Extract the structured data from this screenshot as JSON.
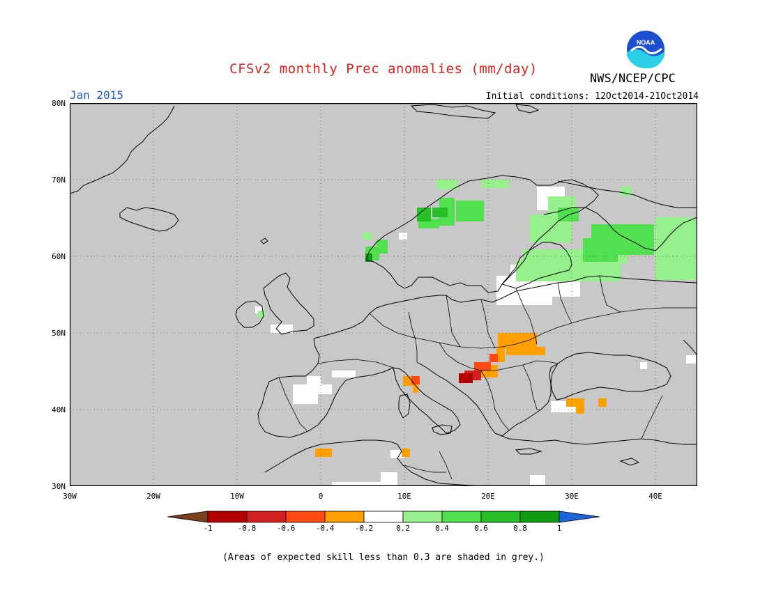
{
  "title": "CFSv2 monthly Prec anomalies (mm/day)",
  "agency": "NWS/NCEP/CPC",
  "logo_text": "NOAA",
  "month": "Jan 2015",
  "initial_conditions": "Initial conditions: 12Oct2014-21Oct2014",
  "footnote": "(Areas of expected skill less than 0.3 are shaded in grey.)",
  "map": {
    "lat_labels": [
      "80N",
      "70N",
      "60N",
      "50N",
      "40N",
      "30N"
    ],
    "lon_labels": [
      "30W",
      "20W",
      "10W",
      "0",
      "10E",
      "20E",
      "30E",
      "40E"
    ],
    "background_color": "#c8c8c8"
  },
  "legend": {
    "labels": [
      "-1",
      "-0.8",
      "-0.6",
      "-0.4",
      "-0.2",
      "0.2",
      "0.4",
      "0.6",
      "0.8",
      "1"
    ],
    "colors": {
      "below_min": "#7a3f1d",
      "bins": [
        "#b40000",
        "#d22020",
        "#ff4a14",
        "#ffa000",
        "#ffffff",
        "#96f08c",
        "#50e050",
        "#28c028",
        "#119b11"
      ],
      "above_max": "#1c64dc"
    }
  },
  "anomaly_colors": {
    "white": "#ffffff",
    "lightgreen": "#96f08c",
    "green": "#50e050",
    "darkgreen": "#28c028",
    "darkestgreen": "#119b11",
    "orange": "#ffa000",
    "redorange": "#ff4a14",
    "red": "#d22020",
    "darkred": "#b40000"
  }
}
